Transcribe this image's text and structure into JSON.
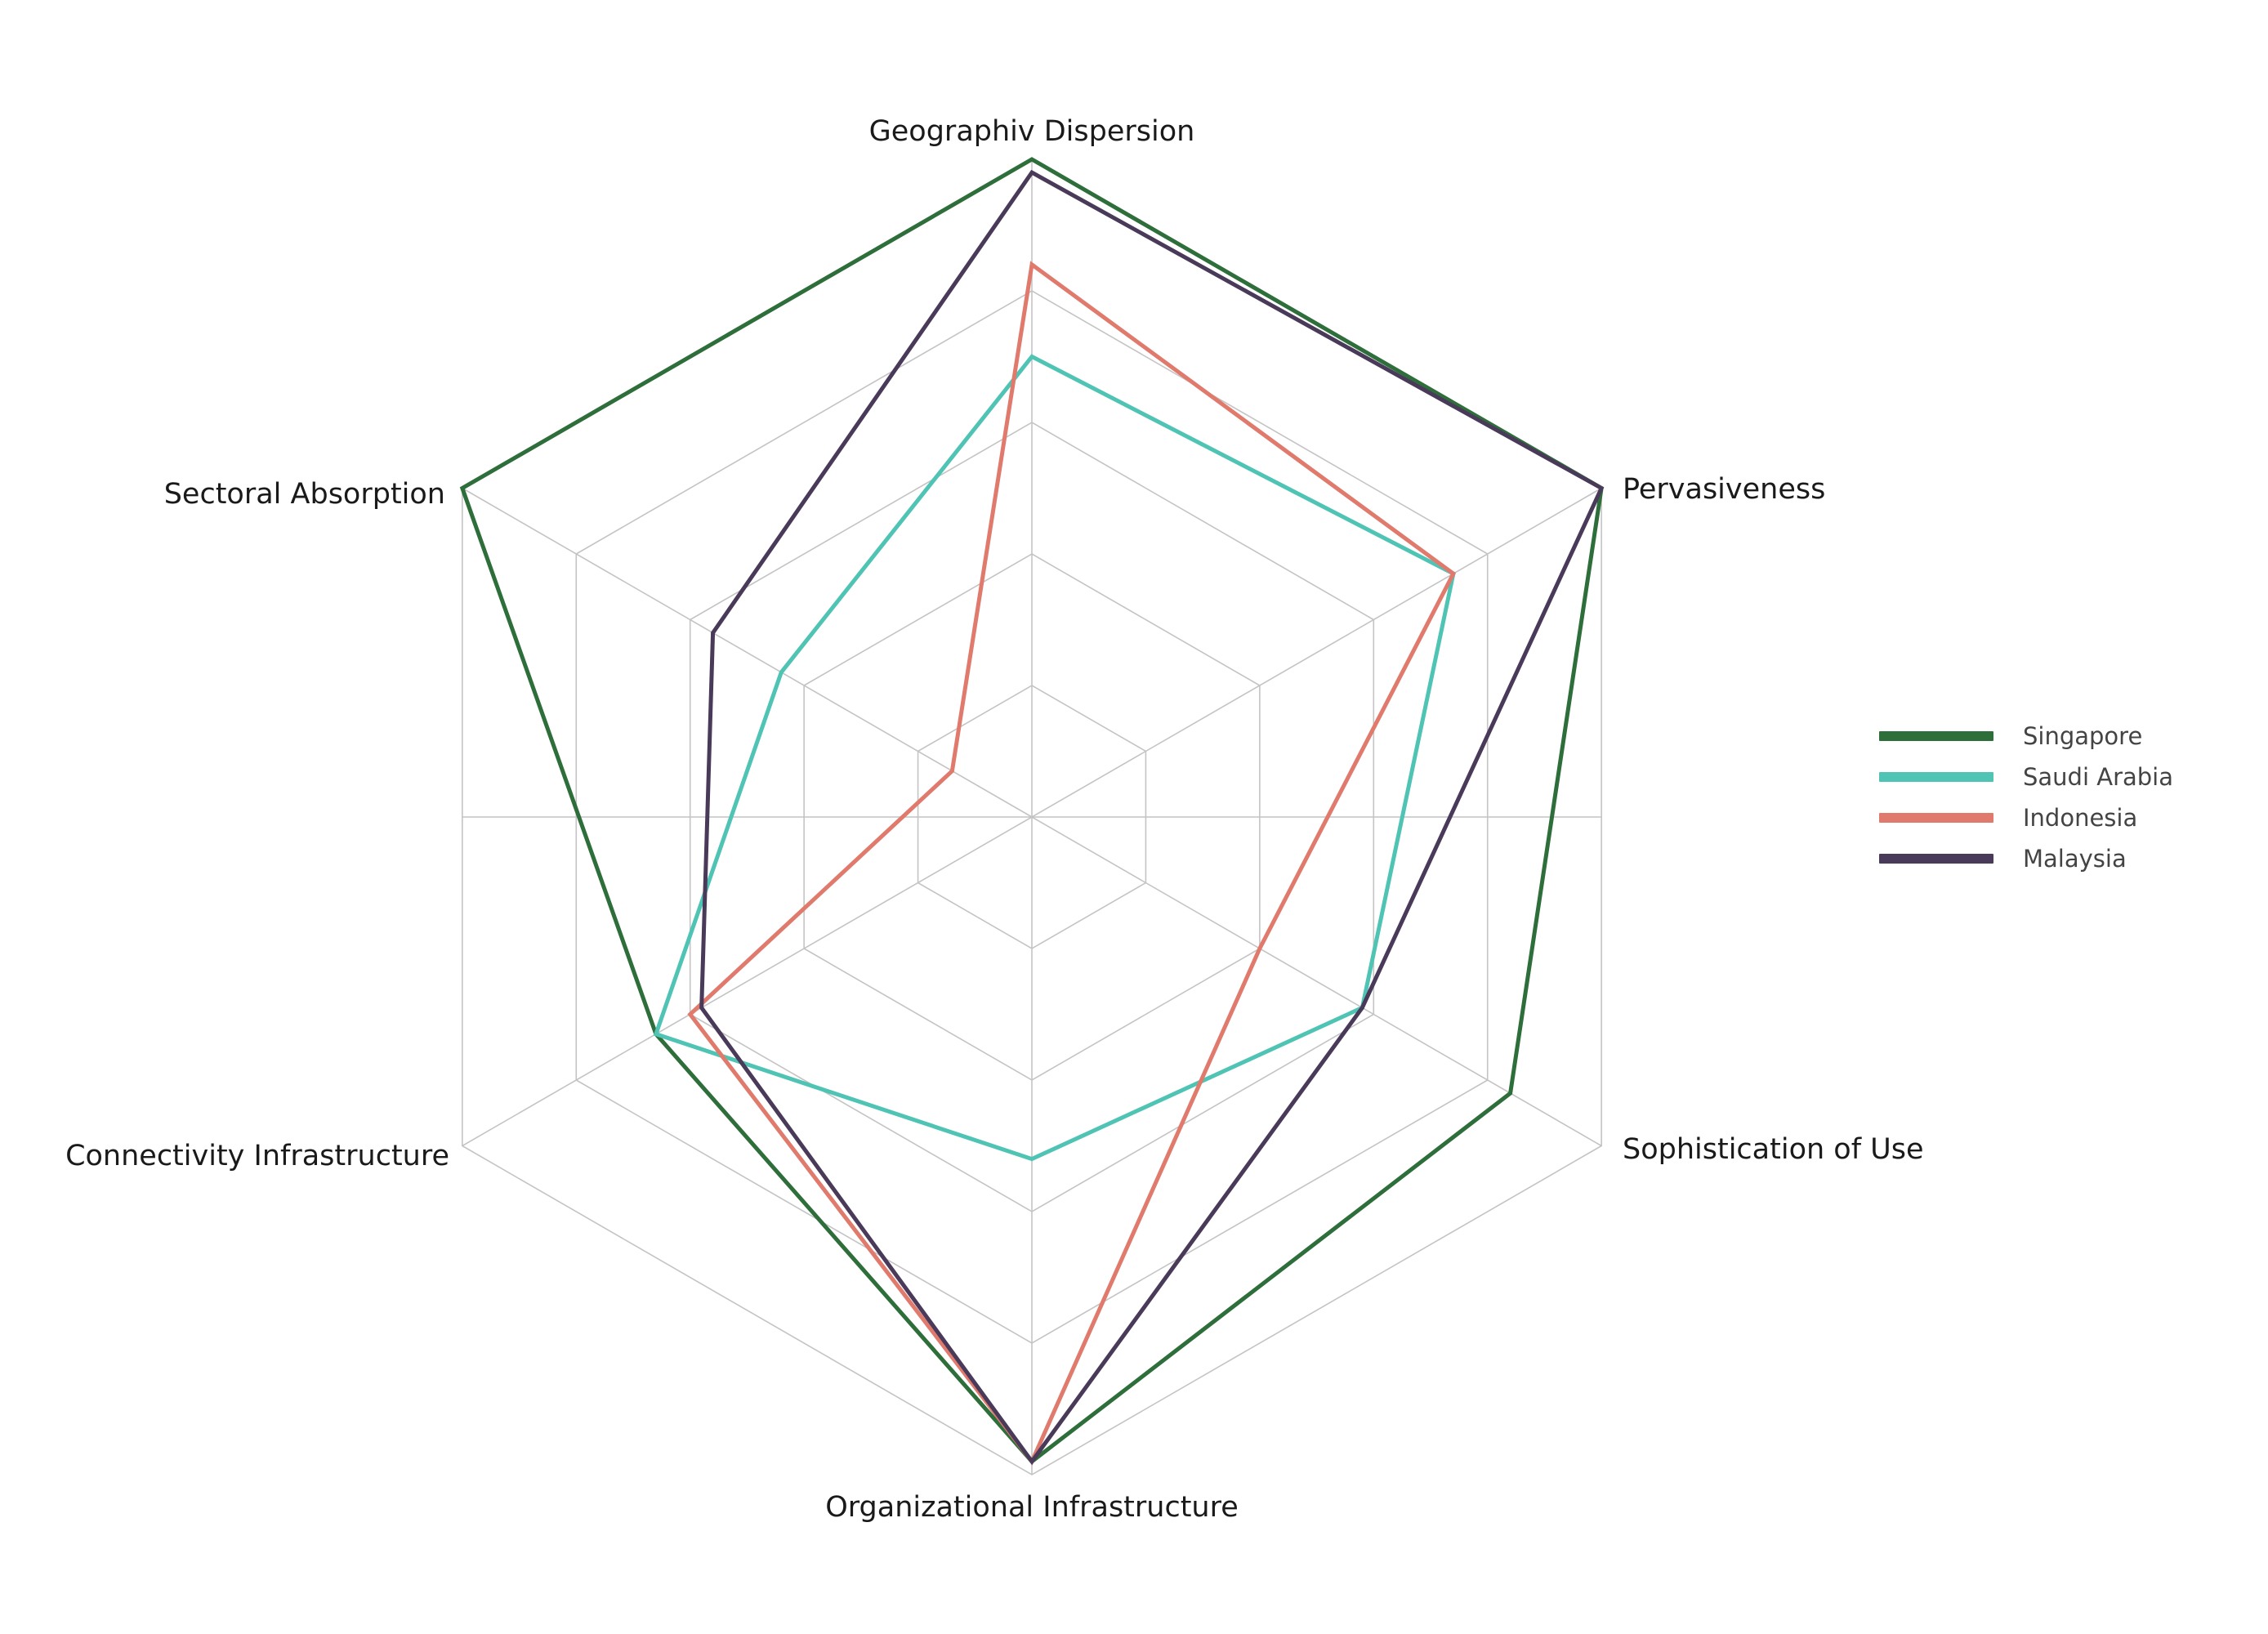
{
  "chart_data": {
    "type": "radar",
    "axes": [
      "Geographiv Dispersion",
      "Pervasiveness",
      "Sophistication of Use",
      "Organizational Infrastructure",
      "Connectivity Infrastructure",
      "Sectoral Absorption"
    ],
    "range": [
      0,
      5
    ],
    "rings": 5,
    "grid": true,
    "legend": "right",
    "series": [
      {
        "name": "Singapore",
        "color": "#2e6e3a",
        "values": [
          5,
          5,
          4.2,
          4.9,
          3.3,
          5
        ]
      },
      {
        "name": "Saudi Arabia",
        "color": "#4fc4b4",
        "values": [
          3.5,
          3.7,
          2.9,
          2.6,
          3.3,
          2.2
        ]
      },
      {
        "name": "Indonesia",
        "color": "#e07a6c",
        "values": [
          4.2,
          3.7,
          2.0,
          4.9,
          3.0,
          0.7
        ]
      },
      {
        "name": "Malaysia",
        "color": "#4a3a5a",
        "values": [
          4.9,
          5,
          2.9,
          4.9,
          2.9,
          2.8
        ]
      }
    ]
  }
}
